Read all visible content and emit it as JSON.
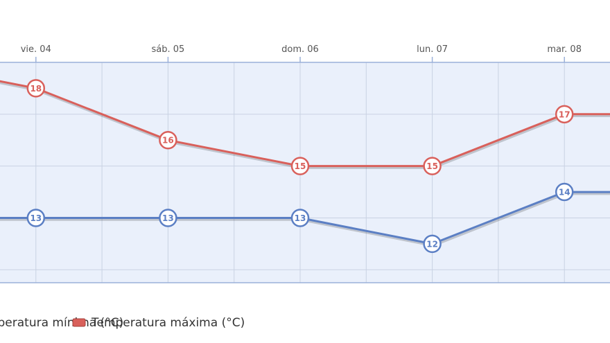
{
  "chart_data": {
    "type": "line",
    "categories": [
      "",
      "vie. 04",
      "",
      "sáb. 05",
      "",
      "dom. 06",
      "",
      "lun. 07",
      "",
      "mar. 08",
      ""
    ],
    "x_tick_labels": [
      "vie. 04",
      "sáb. 05",
      "dom. 06",
      "lun. 07",
      "mar. 08"
    ],
    "series": [
      {
        "name": "Temperatura mínima (°C)",
        "color": "#5b7fc4",
        "values": [
          13,
          13,
          null,
          13,
          null,
          13,
          null,
          12,
          null,
          14,
          14
        ],
        "labels": [
          "",
          "13",
          "",
          "13",
          "",
          "13",
          "",
          "12",
          "",
          "14",
          ""
        ]
      },
      {
        "name": "Temperatura máxima (°C)",
        "color": "#d9605b",
        "values": [
          18.5,
          18,
          null,
          16,
          null,
          15,
          null,
          15,
          null,
          17,
          17
        ],
        "labels": [
          "",
          "18",
          "",
          "16",
          "",
          "15",
          "",
          "15",
          "",
          "17",
          ""
        ]
      }
    ],
    "ylim": [
      10.5,
      19
    ],
    "grid": true,
    "legend": "bottom",
    "colors": {
      "plot_bg": "#eaf0fb",
      "grid": "#c9d2e3",
      "border": "#9ab0d9"
    }
  }
}
